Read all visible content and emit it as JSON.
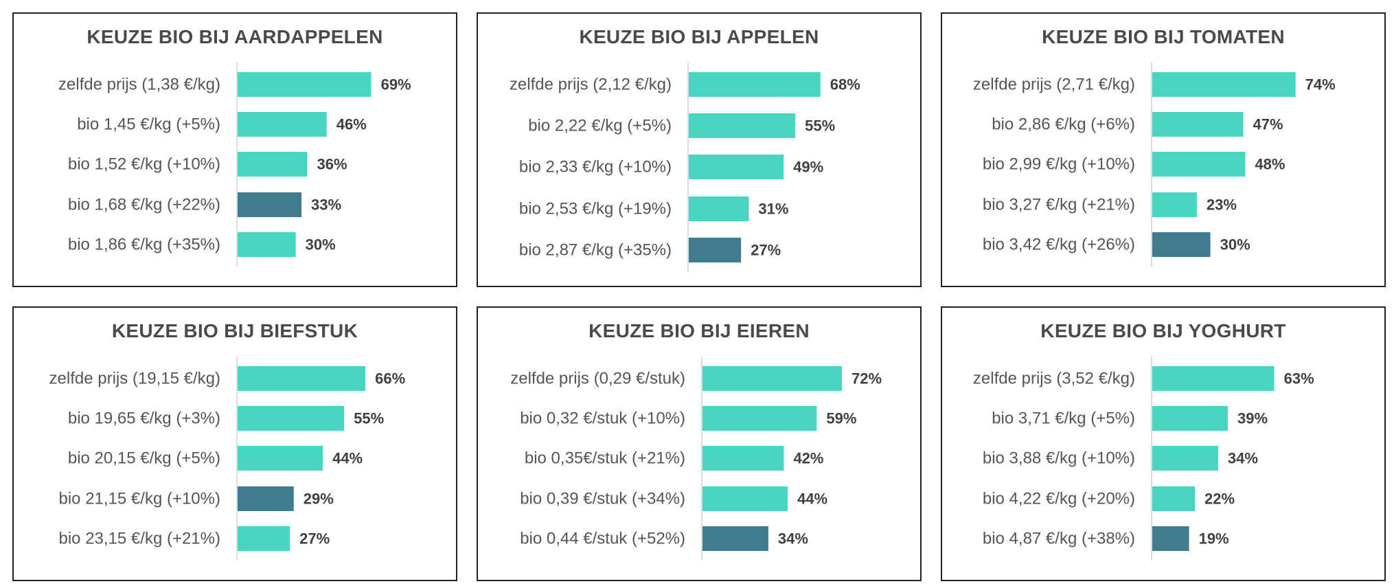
{
  "colors": {
    "default_bar": "#48d6c3",
    "highlight_bar": "#3f7c8f",
    "axis": "#d0d0d0"
  },
  "chart_data": [
    {
      "type": "bar",
      "orientation": "horizontal",
      "title": "KEUZE BIO BIJ AARDAPPELEN",
      "categories": [
        "zelfde prijs (1,38 €/kg)",
        "bio 1,45 €/kg (+5%)",
        "bio 1,52 €/kg (+10%)",
        "bio 1,68 €/kg (+22%)",
        "bio 1,86 €/kg (+35%)"
      ],
      "values": [
        69,
        46,
        36,
        33,
        30
      ],
      "value_labels": [
        "69%",
        "46%",
        "36%",
        "33%",
        "30%"
      ],
      "highlight_index": 3,
      "xlim": [
        0,
        100
      ]
    },
    {
      "type": "bar",
      "orientation": "horizontal",
      "title": "KEUZE BIO BIJ APPELEN",
      "categories": [
        "zelfde prijs (2,12 €/kg)",
        "bio 2,22 €/kg (+5%)",
        "bio 2,33 €/kg (+10%)",
        "bio 2,53 €/kg (+19%)",
        "bio 2,87 €/kg (+35%)"
      ],
      "values": [
        68,
        55,
        49,
        31,
        27
      ],
      "value_labels": [
        "68%",
        "55%",
        "49%",
        "31%",
        "27%"
      ],
      "highlight_index": 4,
      "xlim": [
        0,
        100
      ]
    },
    {
      "type": "bar",
      "orientation": "horizontal",
      "title": "KEUZE BIO BIJ TOMATEN",
      "categories": [
        "zelfde prijs (2,71 €/kg)",
        "bio 2,86 €/kg (+6%)",
        "bio 2,99 €/kg (+10%)",
        "bio 3,27 €/kg (+21%)",
        "bio 3,42 €/kg (+26%)"
      ],
      "values": [
        74,
        47,
        48,
        23,
        30
      ],
      "value_labels": [
        "74%",
        "47%",
        "48%",
        "23%",
        "30%"
      ],
      "highlight_index": 4,
      "xlim": [
        0,
        100
      ]
    },
    {
      "type": "bar",
      "orientation": "horizontal",
      "title": "KEUZE BIO BIJ BIEFSTUK",
      "categories": [
        "zelfde prijs (19,15 €/kg)",
        "bio 19,65 €/kg (+3%)",
        "bio 20,15 €/kg (+5%)",
        "bio 21,15 €/kg (+10%)",
        "bio 23,15 €/kg (+21%)"
      ],
      "values": [
        66,
        55,
        44,
        29,
        27
      ],
      "value_labels": [
        "66%",
        "55%",
        "44%",
        "29%",
        "27%"
      ],
      "highlight_index": 3,
      "xlim": [
        0,
        100
      ]
    },
    {
      "type": "bar",
      "orientation": "horizontal",
      "title": "KEUZE BIO BIJ EIEREN",
      "categories": [
        "zelfde prijs (0,29 €/stuk)",
        "bio 0,32 €/stuk (+10%)",
        "bio 0,35€/stuk (+21%)",
        "bio 0,39 €/stuk (+34%)",
        "bio 0,44 €/stuk (+52%)"
      ],
      "values": [
        72,
        59,
        42,
        44,
        34
      ],
      "value_labels": [
        "72%",
        "59%",
        "42%",
        "44%",
        "34%"
      ],
      "highlight_index": 4,
      "xlim": [
        0,
        100
      ]
    },
    {
      "type": "bar",
      "orientation": "horizontal",
      "title": "KEUZE BIO BIJ YOGHURT",
      "categories": [
        "zelfde prijs (3,52 €/kg)",
        "bio 3,71 €/kg (+5%)",
        "bio 3,88 €/kg (+10%)",
        "bio 4,22 €/kg (+20%)",
        "bio 4,87 €/kg (+38%)"
      ],
      "values": [
        63,
        39,
        34,
        22,
        19
      ],
      "value_labels": [
        "63%",
        "39%",
        "34%",
        "22%",
        "19%"
      ],
      "highlight_index": 4,
      "xlim": [
        0,
        100
      ]
    }
  ]
}
